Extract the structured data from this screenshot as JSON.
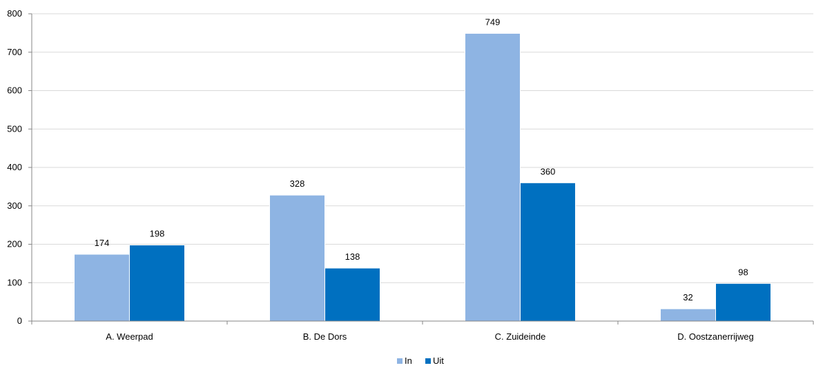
{
  "chart_data": {
    "type": "bar",
    "categories": [
      "A. Weerpad",
      "B. De Dors",
      "C. Zuideinde",
      "D. Oostzanerrijweg"
    ],
    "series": [
      {
        "name": "In",
        "values": [
          174,
          328,
          749,
          32
        ],
        "color": "#8EB4E3"
      },
      {
        "name": "Uit",
        "values": [
          198,
          138,
          360,
          98
        ],
        "color": "#0070C0"
      }
    ],
    "ylim": [
      0,
      800
    ],
    "yticks": [
      0,
      100,
      200,
      300,
      400,
      500,
      600,
      700,
      800
    ],
    "grid": true,
    "legend": "bottom-center",
    "gridline_color": "#D9D9D9"
  }
}
